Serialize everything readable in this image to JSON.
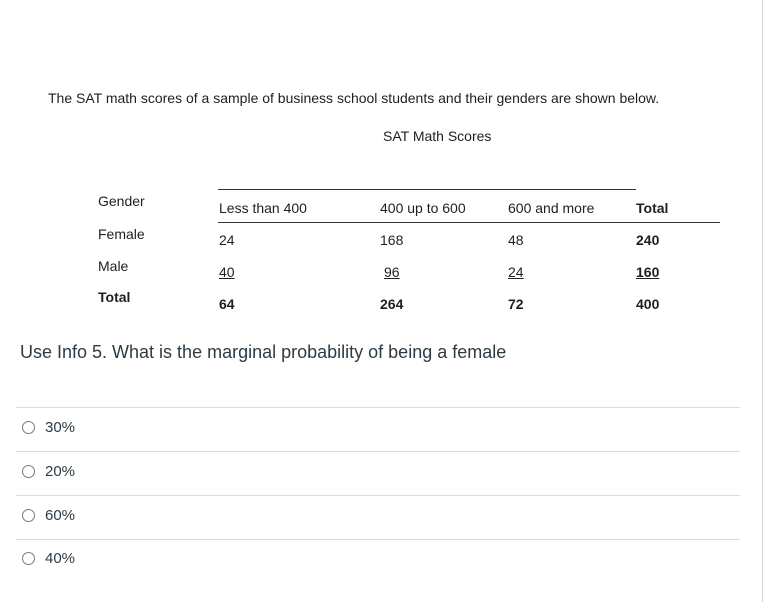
{
  "intro": "The SAT math scores of a sample of business school students and their genders are shown below.",
  "table": {
    "title": "SAT Math Scores",
    "row_header": "Gender",
    "columns": [
      "Less than 400",
      "400 up to 600",
      "600 and more",
      "Total"
    ],
    "rows": [
      {
        "label": "Female",
        "values": [
          "24",
          "168",
          "48",
          "240"
        ]
      },
      {
        "label": "Male",
        "values": [
          "40",
          "96",
          "24",
          "160"
        ]
      },
      {
        "label": "Total",
        "values": [
          "64",
          "264",
          "72",
          "400"
        ]
      }
    ]
  },
  "question": "Use Info 5. What is the marginal probability of being a female",
  "options": [
    "30%",
    "20%",
    "60%",
    "40%"
  ]
}
